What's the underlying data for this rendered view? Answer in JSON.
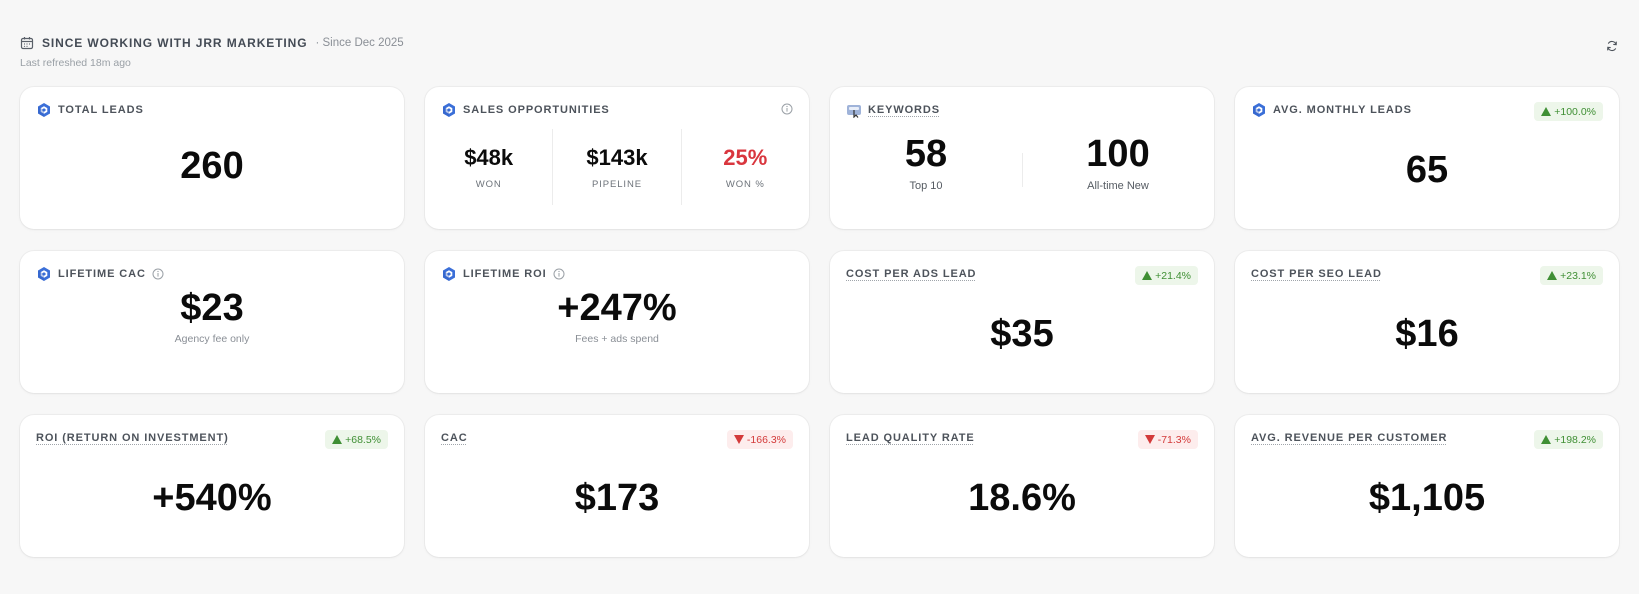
{
  "header": {
    "title": "SINCE WORKING WITH JRR MARKETING",
    "since": "· Since Dec 2025",
    "refreshed": "Last refreshed 18m ago"
  },
  "colors": {
    "brand": "#3b6fd8",
    "up": "#3f8f34",
    "down": "#d33a3a",
    "won_pct": "#d9363e"
  },
  "cards": {
    "total_leads": {
      "title": "TOTAL LEADS",
      "value": "260"
    },
    "sales_opportunities": {
      "title": "SALES OPPORTUNITIES",
      "won": {
        "value": "$48k",
        "label": "WON"
      },
      "pipeline": {
        "value": "$143k",
        "label": "PIPELINE"
      },
      "won_pct": {
        "value": "25%",
        "label": "WON %"
      }
    },
    "keywords": {
      "title": "KEYWORDS",
      "top10": {
        "value": "58",
        "label": "Top 10"
      },
      "new": {
        "value": "100",
        "label": "All-time New"
      }
    },
    "avg_monthly_leads": {
      "title": "AVG. MONTHLY LEADS",
      "value": "65",
      "badge": "+100.0%",
      "trend": "up"
    },
    "lifetime_cac": {
      "title": "LIFETIME CAC",
      "value": "$23",
      "sub": "Agency fee only"
    },
    "lifetime_roi": {
      "title": "LIFETIME ROI",
      "value": "+247%",
      "sub": "Fees + ads spend"
    },
    "cost_per_ads_lead": {
      "title": "COST PER ADS LEAD",
      "value": "$35",
      "badge": "+21.4%",
      "trend": "up"
    },
    "cost_per_seo_lead": {
      "title": "COST PER SEO LEAD",
      "value": "$16",
      "badge": "+23.1%",
      "trend": "up"
    },
    "roi": {
      "title": "ROI (RETURN ON INVESTMENT)",
      "value": "+540%",
      "badge": "+68.5%",
      "trend": "up"
    },
    "cac": {
      "title": "CAC",
      "value": "$173",
      "badge": "-166.3%",
      "trend": "down"
    },
    "lead_quality_rate": {
      "title": "LEAD QUALITY RATE",
      "value": "18.6%",
      "badge": "-71.3%",
      "trend": "down"
    },
    "avg_revenue_per_customer": {
      "title": "AVG. REVENUE PER CUSTOMER",
      "value": "$1,105",
      "badge": "+198.2%",
      "trend": "up"
    }
  },
  "icons": {
    "header": "calendar-icon",
    "refresh": "refresh-icon",
    "brand": "brand-logo-icon",
    "info": "info-icon",
    "keywords": "keyword-tool-icon"
  }
}
